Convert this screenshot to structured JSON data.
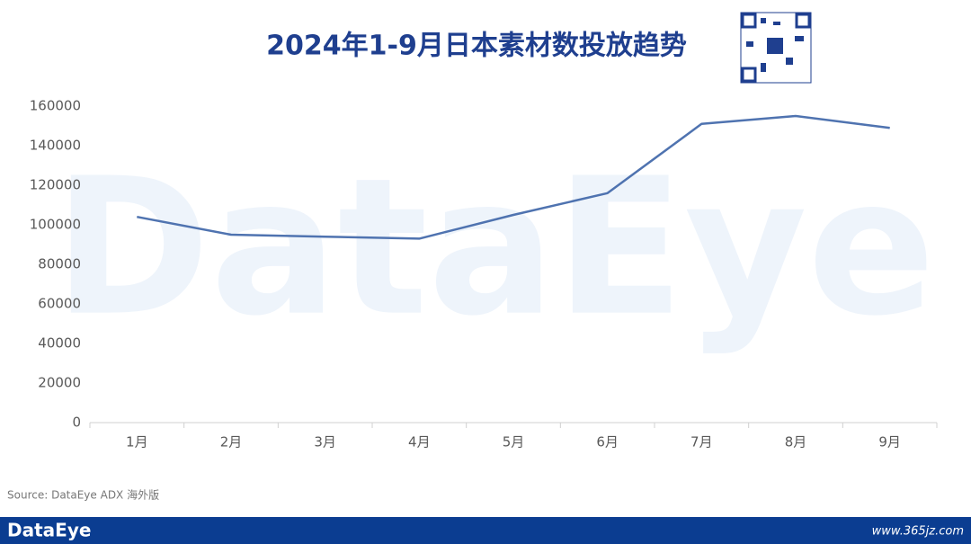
{
  "chart_data": {
    "type": "line",
    "title": "2024年1-9月日本素材数投放趋势",
    "categories": [
      "1月",
      "2月",
      "3月",
      "4月",
      "5月",
      "6月",
      "7月",
      "8月",
      "9月"
    ],
    "series": [
      {
        "name": "素材数",
        "color": "#4f73b0",
        "values": [
          104000,
          95000,
          94000,
          93000,
          105000,
          116000,
          151000,
          155000,
          149000
        ]
      }
    ],
    "ylim": [
      0,
      160000
    ],
    "yticks": [
      0,
      20000,
      40000,
      60000,
      80000,
      100000,
      120000,
      140000,
      160000
    ],
    "grid": false
  },
  "watermark": "DataEye",
  "source": "Source: DataEye ADX 海外版",
  "footer": {
    "logo": "DataEye",
    "site": "www.365jz.com"
  }
}
